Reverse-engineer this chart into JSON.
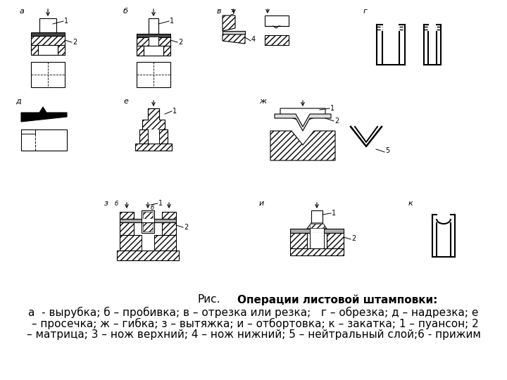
{
  "title_normal": "Рис.",
  "title_bold": "    Операции листовой штамповки:",
  "caption_line1": "а  - вырубка; б – пробивка; в – отрезка или резка;   г – обрезка; д – надрезка; е",
  "caption_line2": " – просечка; ж – гибка; з – вытяжка; и – отбортовка; к – закатка; 1 – пуансон; 2",
  "caption_line3": "– матрица; 3 – нож верхний; 4 – нож нижний; 5 – нейтральный слой;6 - прижим",
  "bg_color": "#ffffff",
  "text_color": "#000000",
  "font_size_caption": 11.0,
  "font_size_title": 11.0
}
